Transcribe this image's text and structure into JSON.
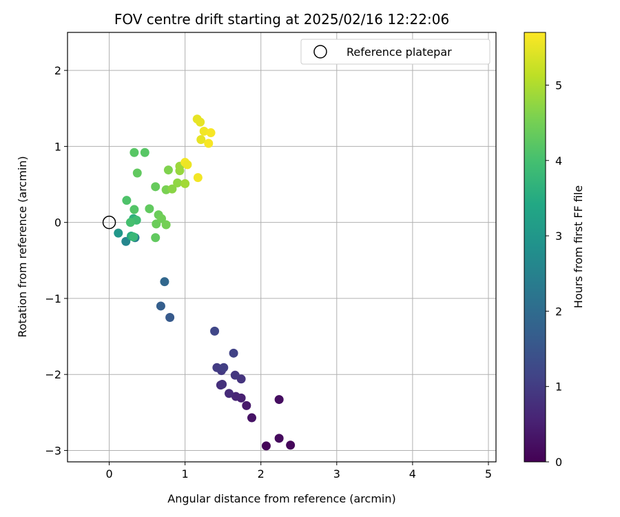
{
  "chart_data": {
    "type": "scatter",
    "title": "FOV centre drift starting at 2025/02/16 12:22:06",
    "xlabel": "Angular distance from reference (arcmin)",
    "ylabel": "Rotation from reference (arcmin)",
    "xlim": [
      -0.55,
      5.1
    ],
    "ylim": [
      -3.15,
      2.5
    ],
    "x_ticks": [
      0,
      1,
      2,
      3,
      4,
      5
    ],
    "y_ticks": [
      -3,
      -2,
      -1,
      0,
      1,
      2
    ],
    "grid": true,
    "legend": {
      "placement": "upper right",
      "entries": [
        "Reference platepar"
      ]
    },
    "reference_point": {
      "name": "Reference platepar",
      "x": 0,
      "y": 0
    },
    "colorbar": {
      "label": "Hours from first FF file",
      "colormap": "viridis",
      "range": [
        0,
        5.7
      ],
      "ticks": [
        0,
        1,
        2,
        3,
        4,
        5
      ]
    },
    "points": [
      {
        "x": 2.07,
        "y": -2.94,
        "c": 0.05
      },
      {
        "x": 2.39,
        "y": -2.93,
        "c": 0.1
      },
      {
        "x": 2.24,
        "y": -2.84,
        "c": 0.15
      },
      {
        "x": 2.24,
        "y": -2.33,
        "c": 0.2
      },
      {
        "x": 1.88,
        "y": -2.57,
        "c": 0.3
      },
      {
        "x": 1.81,
        "y": -2.41,
        "c": 0.4
      },
      {
        "x": 1.74,
        "y": -2.31,
        "c": 0.5
      },
      {
        "x": 1.67,
        "y": -2.29,
        "c": 0.6
      },
      {
        "x": 1.58,
        "y": -2.25,
        "c": 0.7
      },
      {
        "x": 1.47,
        "y": -2.14,
        "c": 0.75
      },
      {
        "x": 1.49,
        "y": -2.13,
        "c": 0.8
      },
      {
        "x": 1.74,
        "y": -2.06,
        "c": 0.85
      },
      {
        "x": 1.66,
        "y": -2.01,
        "c": 0.9
      },
      {
        "x": 1.48,
        "y": -1.95,
        "c": 0.95
      },
      {
        "x": 1.42,
        "y": -1.91,
        "c": 1.0
      },
      {
        "x": 1.51,
        "y": -1.91,
        "c": 1.05
      },
      {
        "x": 1.64,
        "y": -1.72,
        "c": 1.1
      },
      {
        "x": 1.39,
        "y": -1.43,
        "c": 1.2
      },
      {
        "x": 0.8,
        "y": -1.25,
        "c": 1.6
      },
      {
        "x": 0.68,
        "y": -1.1,
        "c": 1.7
      },
      {
        "x": 0.73,
        "y": -0.78,
        "c": 1.9
      },
      {
        "x": 0.34,
        "y": -0.2,
        "c": 2.4
      },
      {
        "x": 0.22,
        "y": -0.25,
        "c": 2.6
      },
      {
        "x": 0.12,
        "y": -0.14,
        "c": 3.0
      },
      {
        "x": 0.29,
        "y": -0.18,
        "c": 3.5
      },
      {
        "x": 0.32,
        "y": 0.05,
        "c": 3.6
      },
      {
        "x": 0.32,
        "y": -0.19,
        "c": 3.8
      },
      {
        "x": 0.36,
        "y": 0.03,
        "c": 3.9
      },
      {
        "x": 0.28,
        "y": 0.0,
        "c": 4.0
      },
      {
        "x": 0.23,
        "y": 0.29,
        "c": 4.1
      },
      {
        "x": 0.33,
        "y": 0.17,
        "c": 4.15
      },
      {
        "x": 0.33,
        "y": 0.92,
        "c": 4.2
      },
      {
        "x": 0.47,
        "y": 0.92,
        "c": 4.2
      },
      {
        "x": 0.37,
        "y": 0.65,
        "c": 4.3
      },
      {
        "x": 0.53,
        "y": 0.18,
        "c": 4.3
      },
      {
        "x": 0.61,
        "y": -0.2,
        "c": 4.3
      },
      {
        "x": 0.61,
        "y": 0.47,
        "c": 4.35
      },
      {
        "x": 0.62,
        "y": -0.02,
        "c": 4.4
      },
      {
        "x": 0.65,
        "y": 0.1,
        "c": 4.4
      },
      {
        "x": 0.69,
        "y": 0.05,
        "c": 4.45
      },
      {
        "x": 0.75,
        "y": -0.03,
        "c": 4.5
      },
      {
        "x": 0.75,
        "y": 0.43,
        "c": 4.55
      },
      {
        "x": 0.78,
        "y": 0.69,
        "c": 4.6
      },
      {
        "x": 0.83,
        "y": 0.44,
        "c": 4.7
      },
      {
        "x": 0.9,
        "y": 0.52,
        "c": 4.75
      },
      {
        "x": 0.93,
        "y": 0.68,
        "c": 4.8
      },
      {
        "x": 0.93,
        "y": 0.74,
        "c": 4.85
      },
      {
        "x": 1.0,
        "y": 0.51,
        "c": 4.9
      },
      {
        "x": 1.0,
        "y": 0.79,
        "c": 5.6
      },
      {
        "x": 1.03,
        "y": 0.76,
        "c": 5.55
      },
      {
        "x": 1.17,
        "y": 0.59,
        "c": 5.6
      },
      {
        "x": 1.16,
        "y": 1.36,
        "c": 5.5
      },
      {
        "x": 1.2,
        "y": 1.32,
        "c": 5.5
      },
      {
        "x": 1.25,
        "y": 1.2,
        "c": 5.6
      },
      {
        "x": 1.34,
        "y": 1.18,
        "c": 5.65
      },
      {
        "x": 1.21,
        "y": 1.09,
        "c": 5.5
      },
      {
        "x": 1.31,
        "y": 1.04,
        "c": 5.65
      }
    ]
  }
}
